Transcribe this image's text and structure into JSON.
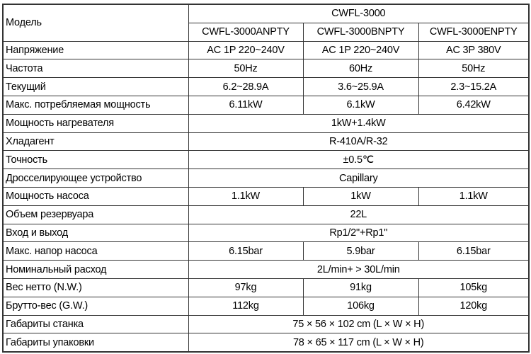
{
  "header": {
    "model_label": "Модель",
    "series": "CWFL-3000",
    "models": [
      "CWFL-3000ANPTY",
      "CWFL-3000BNPTY",
      "CWFL-3000ENPTY"
    ]
  },
  "rows": [
    {
      "label": "Напряжение",
      "values": [
        "AC 1P 220~240V",
        "AC 1P 220~240V",
        "AC 3P 380V"
      ]
    },
    {
      "label": "Частота",
      "values": [
        "50Hz",
        "60Hz",
        "50Hz"
      ]
    },
    {
      "label": "Текущий",
      "values": [
        "6.2~28.9A",
        "3.6~25.9A",
        "2.3~15.2A"
      ]
    },
    {
      "label": "Макс. потребляемая мощность",
      "values": [
        "6.11kW",
        "6.1kW",
        "6.42kW"
      ]
    },
    {
      "label": "Мощность нагревателя",
      "value": "1kW+1.4kW"
    },
    {
      "label": "Хладагент",
      "value": "R-410A/R-32"
    },
    {
      "label": "Точность",
      "value": "±0.5℃"
    },
    {
      "label": "Дросселирующее устройство",
      "value": "Capillary"
    },
    {
      "label": "Мощность насоса",
      "values": [
        "1.1kW",
        "1kW",
        "1.1kW"
      ]
    },
    {
      "label": "Объем резервуара",
      "value": "22L"
    },
    {
      "label": "Вход и выход",
      "value": "Rp1/2\"+Rp1\""
    },
    {
      "label": "Макс. напор насоса",
      "values": [
        "6.15bar",
        "5.9bar",
        "6.15bar"
      ]
    },
    {
      "label": "Номинальный расход",
      "value": "2L/min+ > 30L/min"
    },
    {
      "label": "Вес нетто (N.W.)",
      "values": [
        "97kg",
        "91kg",
        "105kg"
      ]
    },
    {
      "label": "Брутто-вес (G.W.)",
      "values": [
        "112kg",
        "106kg",
        "120kg"
      ]
    },
    {
      "label": "Габариты станка",
      "value": "75 × 56 × 102 cm (L × W × H)"
    },
    {
      "label": "Габариты упаковки",
      "value": "78 × 65 × 117 cm (L × W × H)"
    }
  ]
}
